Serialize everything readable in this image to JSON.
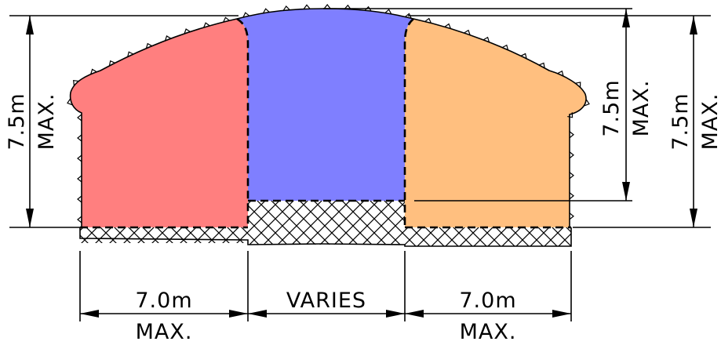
{
  "colors": {
    "left_zone": "#ff7f7f",
    "middle_zone": "#7f7fff",
    "right_zone": "#ffbf7f",
    "lines": "#000000"
  },
  "dimensions": {
    "left_height_value": "7.5m",
    "left_height_note": "MAX.",
    "mid_height_value": "7.5m",
    "mid_height_note": "MAX.",
    "right_height_value": "7.5m",
    "right_height_note": "MAX.",
    "left_width_value": "7.0m",
    "left_width_note": "MAX.",
    "middle_width_value": "VARIES",
    "right_width_value": "7.0m",
    "right_width_note": "MAX."
  }
}
